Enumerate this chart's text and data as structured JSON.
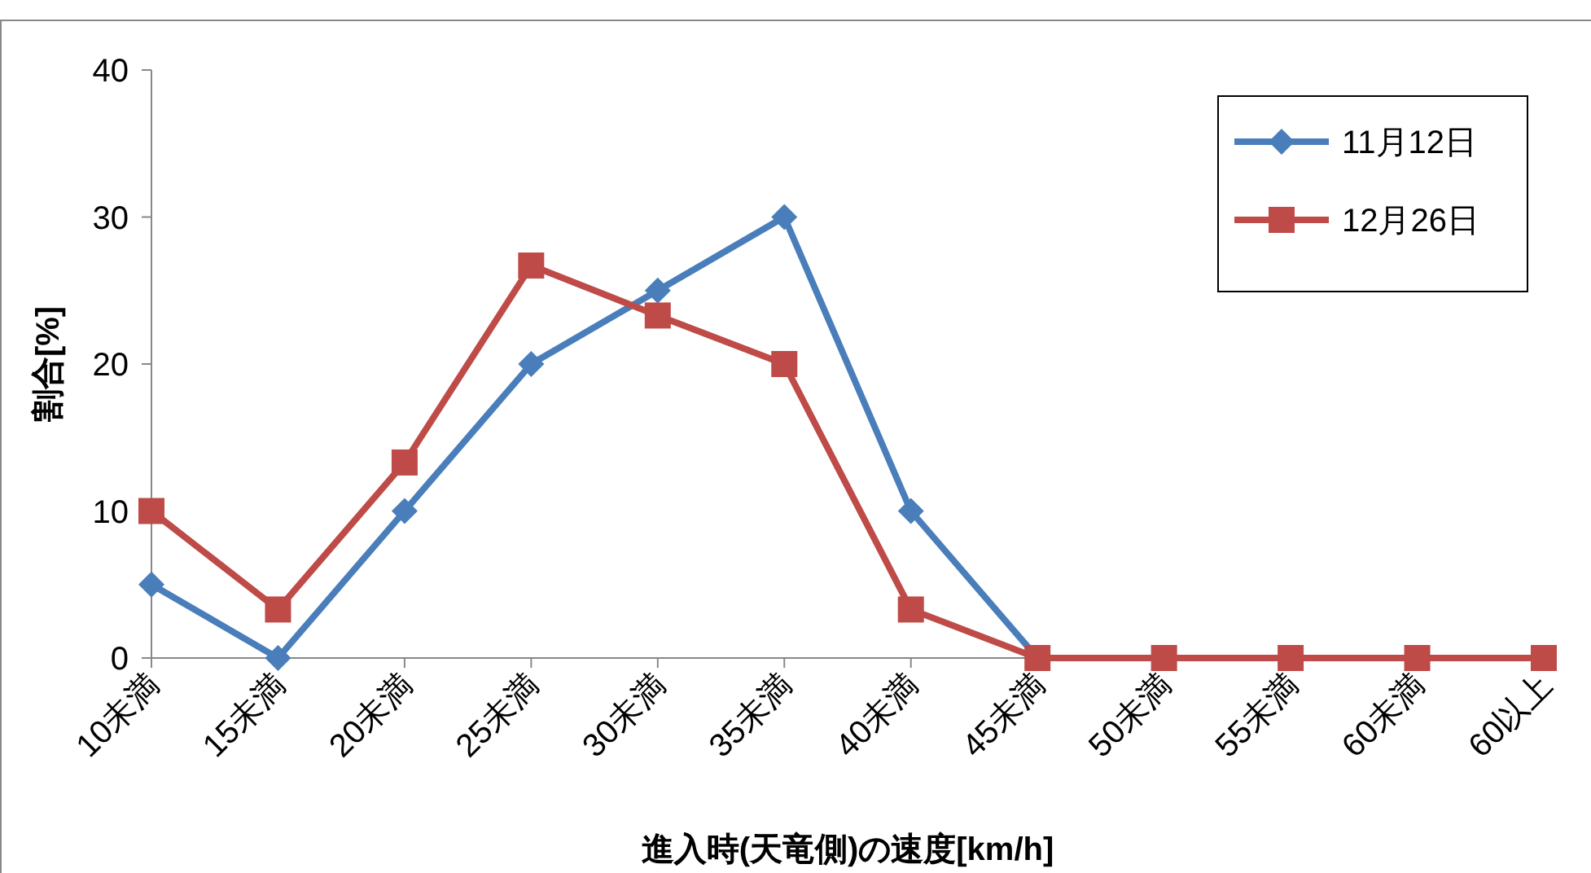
{
  "chart_data": {
    "type": "line",
    "xlabel": "進入時(天竜側)の速度[km/h]",
    "ylabel": "割合[%]",
    "categories": [
      "10未満",
      "15未満",
      "20未満",
      "25未満",
      "30未満",
      "35未満",
      "40未満",
      "45未満",
      "50未満",
      "55未満",
      "60未満",
      "60以上"
    ],
    "ylim": [
      0,
      40
    ],
    "yticks": [
      0,
      10,
      20,
      30,
      40
    ],
    "grid": false,
    "legend": "top right",
    "series": [
      {
        "name": "11月12日",
        "color": "#4a7ebb",
        "marker": "diamond",
        "values": [
          5,
          0,
          10,
          20,
          25,
          30,
          10,
          0,
          null,
          null,
          null,
          null
        ]
      },
      {
        "name": "12月26日",
        "color": "#be4b48",
        "marker": "square",
        "values": [
          10,
          3.3,
          13.3,
          26.7,
          23.3,
          20,
          3.3,
          0,
          0,
          0,
          0,
          0
        ]
      }
    ]
  }
}
